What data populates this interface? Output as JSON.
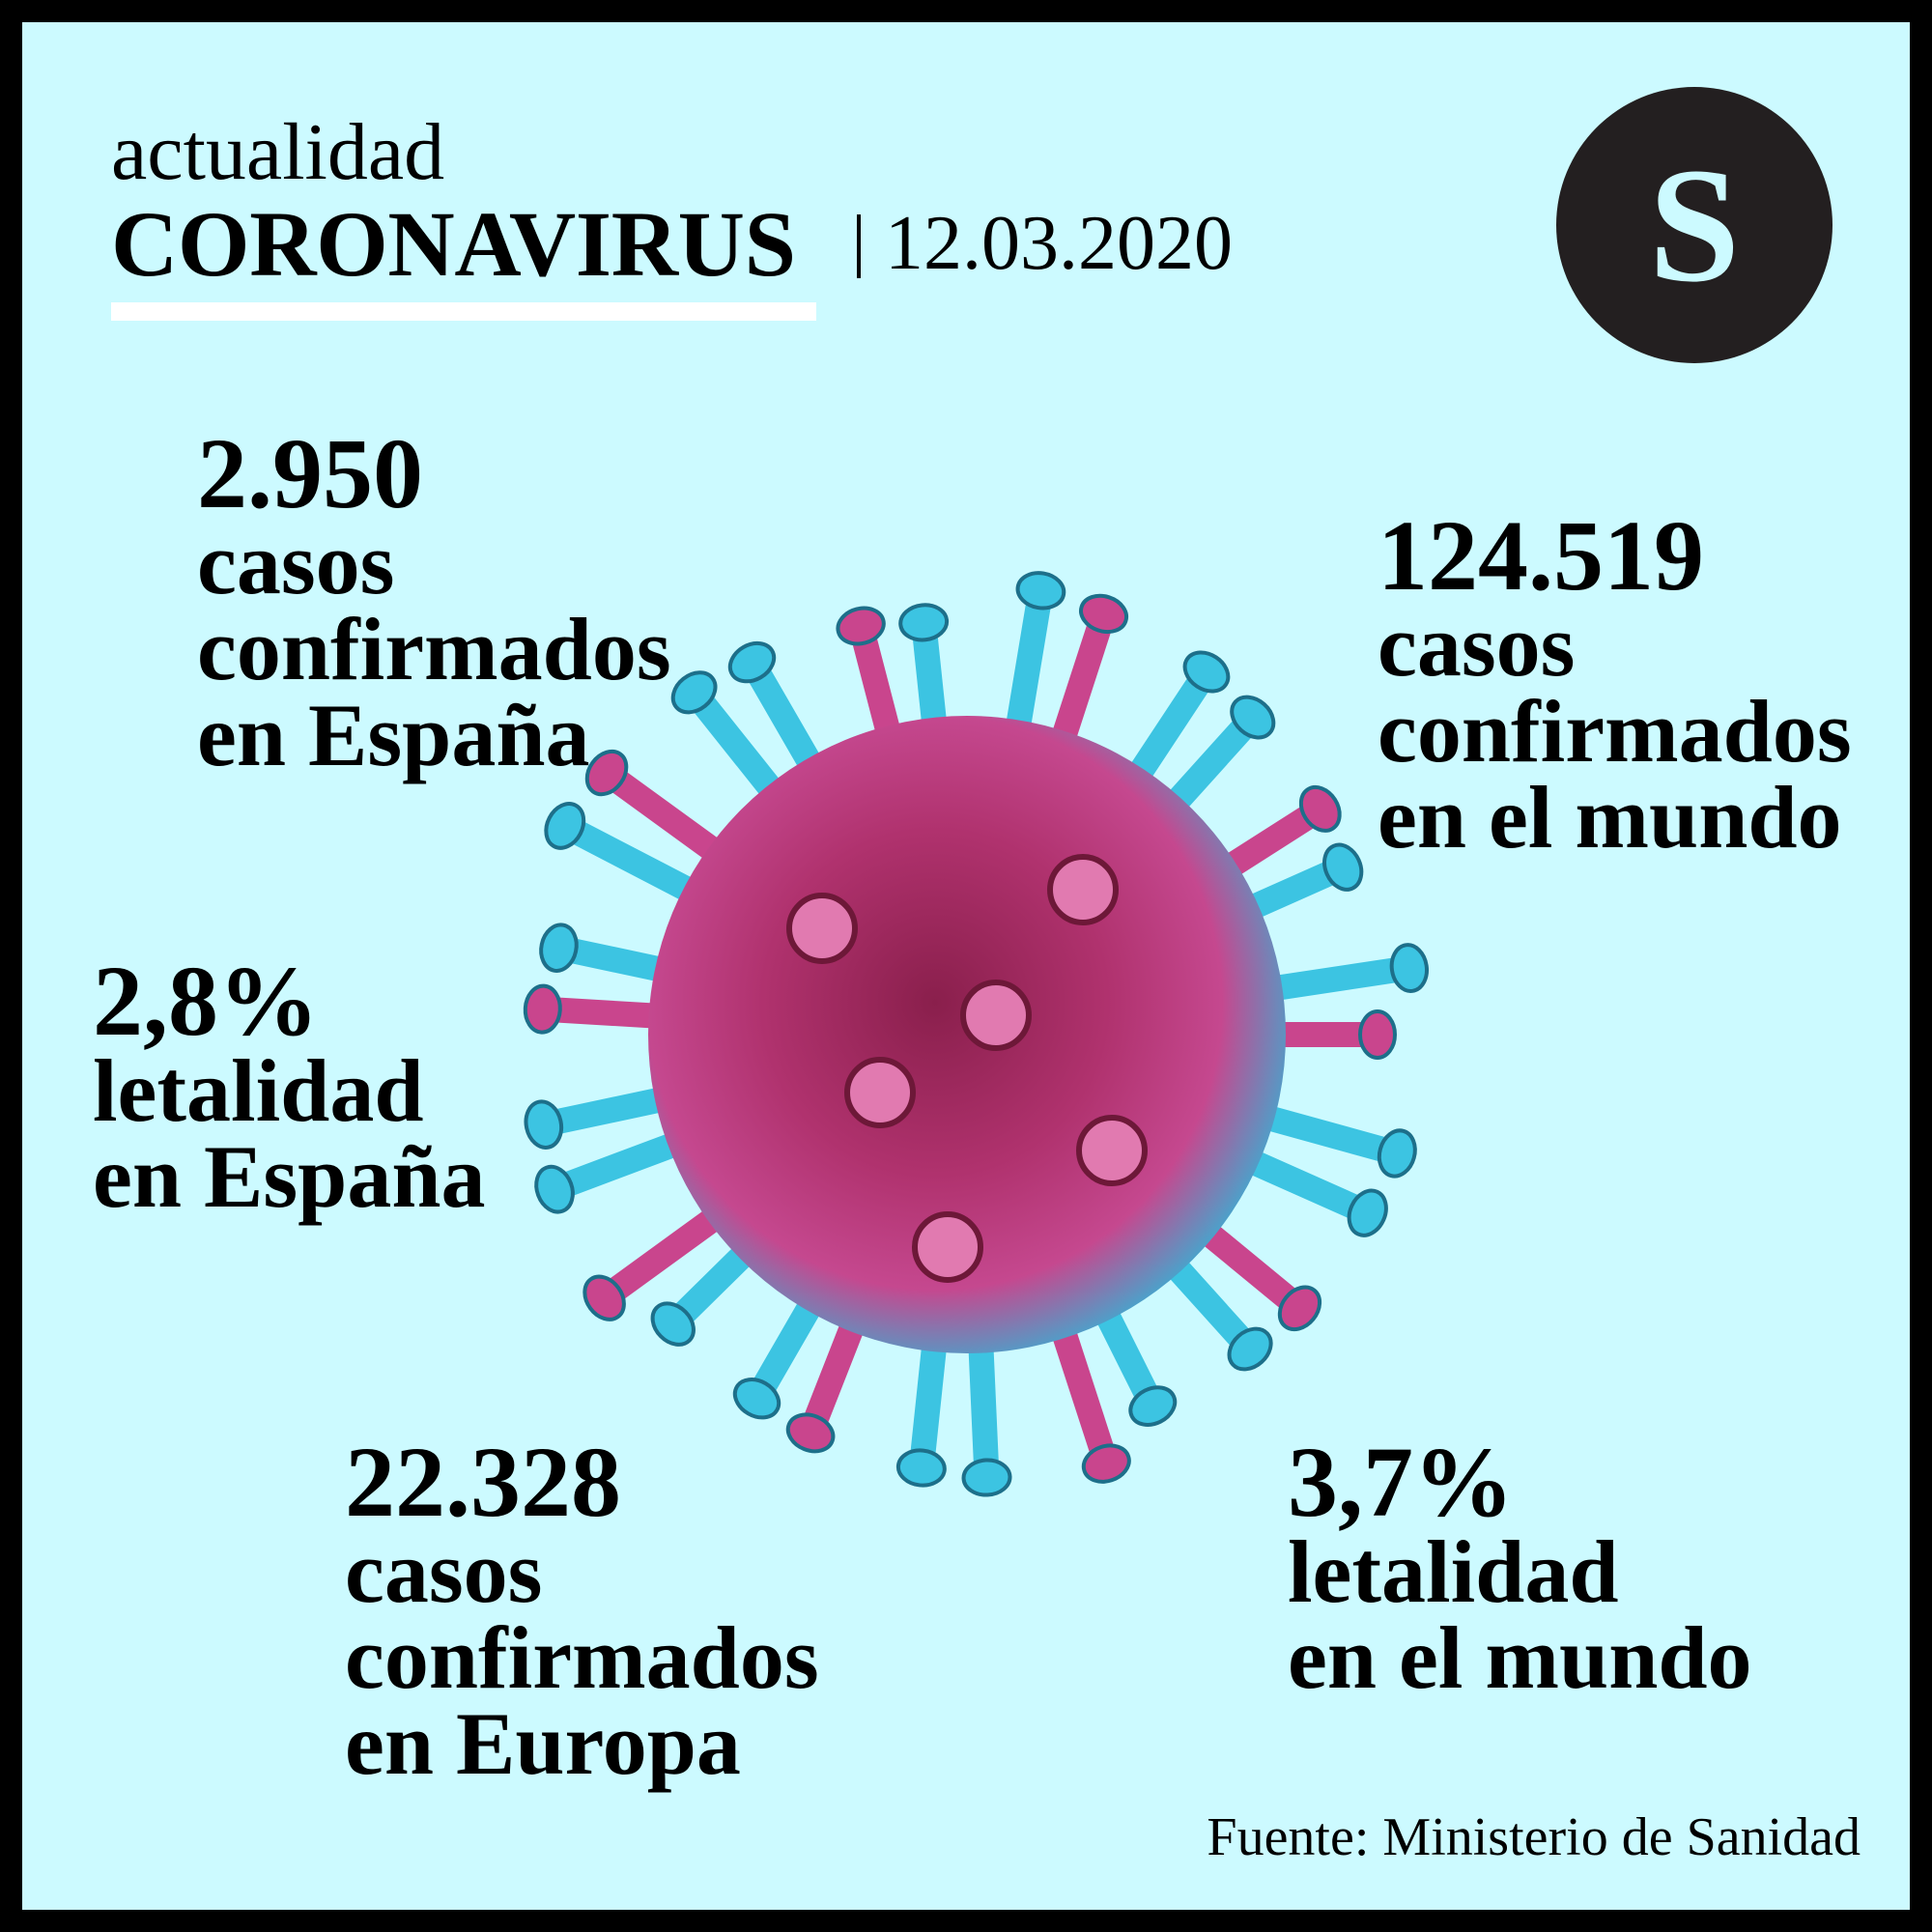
{
  "header": {
    "section": "actualidad",
    "title": "CORONAVIRUS",
    "date": "12.03.2020",
    "logo": "S"
  },
  "stats": [
    {
      "value": "2.950",
      "lines": [
        "casos",
        "confirmados",
        "en España"
      ]
    },
    {
      "value": "124.519",
      "lines": [
        "casos",
        "confirmados",
        "en el mundo"
      ]
    },
    {
      "value": "2,8%",
      "lines": [
        "letalidad",
        "en España"
      ]
    },
    {
      "value": "22.328",
      "lines": [
        "casos",
        "confirmados",
        "en Europa"
      ]
    },
    {
      "value": "3,7%",
      "lines": [
        "letalidad",
        "en el mundo"
      ]
    }
  ],
  "source": "Fuente: Ministerio de Sanidad"
}
